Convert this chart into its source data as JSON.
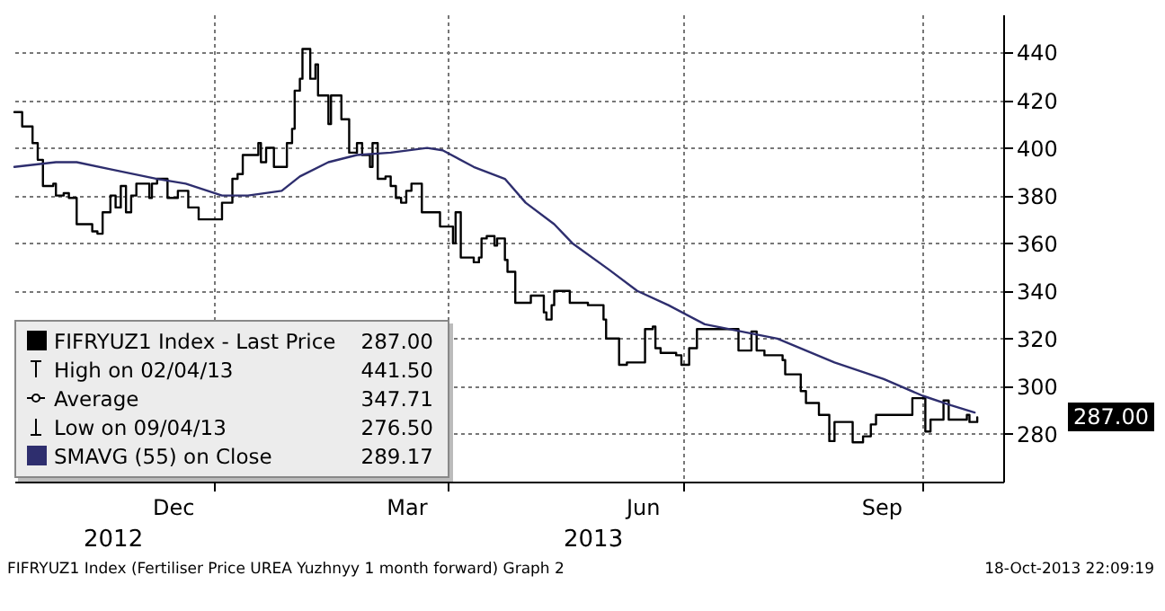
{
  "chart_data": {
    "type": "line",
    "xlim": [
      "2012-10-16",
      "2013-11-01"
    ],
    "ylim": [
      260,
      456
    ],
    "xticks": [
      {
        "value": "2012-12-16",
        "label": "Dec"
      },
      {
        "value": "2013-01-01",
        "label": null
      },
      {
        "value": "2013-03-16",
        "label": "Mar"
      },
      {
        "value": "2013-04-01",
        "label": null
      },
      {
        "value": "2013-06-15",
        "label": "Jun"
      },
      {
        "value": "2013-07-01",
        "label": null
      },
      {
        "value": "2013-09-15",
        "label": "Sep"
      },
      {
        "value": "2013-10-01",
        "label": null
      }
    ],
    "yticks": [
      280,
      300,
      320,
      340,
      360,
      380,
      400,
      420,
      440
    ],
    "grid": true,
    "legend": "bottom left",
    "series": [
      {
        "name": "FIFRYUZ1 Index - Last Price",
        "type": "step",
        "color": "#000000",
        "x": [
          "2012-10-16",
          "2012-10-19",
          "2012-10-23",
          "2012-10-25",
          "2012-10-27",
          "2012-10-31",
          "2012-11-01",
          "2012-11-04",
          "2012-11-06",
          "2012-11-09",
          "2012-11-15",
          "2012-11-17",
          "2012-11-19",
          "2012-11-22",
          "2012-11-24",
          "2012-11-26",
          "2012-11-28",
          "2012-11-30",
          "2012-12-02",
          "2012-12-07",
          "2012-12-08",
          "2012-12-10",
          "2012-12-14",
          "2012-12-18",
          "2012-12-22",
          "2012-12-26",
          "2013-01-04",
          "2013-01-08",
          "2013-01-10",
          "2013-01-12",
          "2013-01-18",
          "2013-01-19",
          "2013-01-21",
          "2013-01-24",
          "2013-01-29",
          "2013-01-31",
          "2013-02-01",
          "2013-02-03",
          "2013-02-04",
          "2013-02-07",
          "2013-02-09",
          "2013-02-10",
          "2013-02-14",
          "2013-02-15",
          "2013-02-19",
          "2013-02-22",
          "2013-02-25",
          "2013-02-27",
          "2013-03-02",
          "2013-03-03",
          "2013-03-05",
          "2013-03-08",
          "2013-03-10",
          "2013-03-12",
          "2013-03-14",
          "2013-03-16",
          "2013-03-18",
          "2013-03-22",
          "2013-03-29",
          "2013-04-03",
          "2013-04-04",
          "2013-04-06",
          "2013-04-11",
          "2013-04-13",
          "2013-04-14",
          "2013-04-16",
          "2013-04-19",
          "2013-04-20",
          "2013-04-23",
          "2013-04-24",
          "2013-04-27",
          "2013-05-03",
          "2013-05-08",
          "2013-05-09",
          "2013-05-11",
          "2013-05-12",
          "2013-05-18",
          "2013-05-25",
          "2013-05-31",
          "2013-06-01",
          "2013-06-06",
          "2013-06-09",
          "2013-06-16",
          "2013-06-19",
          "2013-06-20",
          "2013-06-22",
          "2013-06-28",
          "2013-06-30",
          "2013-07-03",
          "2013-07-06",
          "2013-07-22",
          "2013-07-27",
          "2013-07-29",
          "2013-08-01",
          "2013-08-08",
          "2013-08-09",
          "2013-08-15",
          "2013-08-17",
          "2013-08-22",
          "2013-08-26",
          "2013-08-28",
          "2013-09-04",
          "2013-09-08",
          "2013-09-11",
          "2013-09-13",
          "2013-09-27",
          "2013-10-02",
          "2013-10-04",
          "2013-10-09",
          "2013-10-11",
          "2013-10-18",
          "2013-10-19",
          "2013-10-22"
        ],
        "values": [
          415,
          409,
          402,
          395,
          384,
          385,
          380,
          381,
          379,
          368,
          365,
          364,
          373,
          380,
          375,
          384,
          373,
          380,
          385,
          379,
          385,
          387,
          379,
          382,
          375,
          370,
          377,
          387,
          389,
          397,
          402,
          394,
          400,
          392,
          402,
          408,
          424,
          429,
          441.5,
          429,
          435,
          422,
          410,
          422,
          412,
          398,
          402,
          397,
          392,
          402,
          387,
          388,
          384,
          379,
          377,
          382,
          385,
          373,
          367,
          360,
          373,
          354,
          352,
          354,
          362,
          363,
          359,
          362,
          353,
          348,
          335,
          338,
          331,
          328,
          334,
          340,
          335,
          334,
          328,
          320,
          309,
          310,
          324,
          325,
          316,
          314,
          313,
          309,
          316,
          324,
          315,
          323,
          315,
          313,
          311,
          305,
          298,
          293,
          288,
          277,
          285,
          276.5,
          279,
          284,
          288,
          295,
          281,
          286,
          294,
          286,
          288,
          285,
          287
        ]
      },
      {
        "name": "SMAVG (55) on Close",
        "type": "line",
        "color": "#2e2e6e",
        "x": [
          "2012-10-16",
          "2012-11-01",
          "2012-11-09",
          "2012-11-22",
          "2012-12-10",
          "2012-12-21",
          "2013-01-04",
          "2013-01-14",
          "2013-01-27",
          "2013-02-03",
          "2013-02-14",
          "2013-02-25",
          "2013-03-10",
          "2013-03-24",
          "2013-03-30",
          "2013-04-11",
          "2013-04-23",
          "2013-05-01",
          "2013-05-12",
          "2013-05-19",
          "2013-06-02",
          "2013-06-13",
          "2013-06-25",
          "2013-07-09",
          "2013-08-06",
          "2013-08-28",
          "2013-09-16",
          "2013-10-01",
          "2013-10-12",
          "2013-10-21"
        ],
        "values": [
          392,
          394,
          394,
          391,
          387,
          385,
          380,
          380,
          382,
          388,
          394,
          397,
          398,
          400,
          399,
          392,
          387,
          377,
          368,
          360,
          349,
          340,
          334,
          326,
          320,
          310,
          303,
          296,
          292,
          289
        ]
      }
    ],
    "annotations": [
      "2012",
      "2013",
      "FIFRYUZ1 Index (Fertiliser Price UREA Yuzhnyy 1 month forward) Graph 2",
      "18-Oct-2013 22:09:19",
      "High on 02/04/13",
      "441.50",
      "Average",
      "347.71",
      "Low on 09/04/13",
      "276.50",
      "287.00",
      "289.17"
    ]
  }
}
